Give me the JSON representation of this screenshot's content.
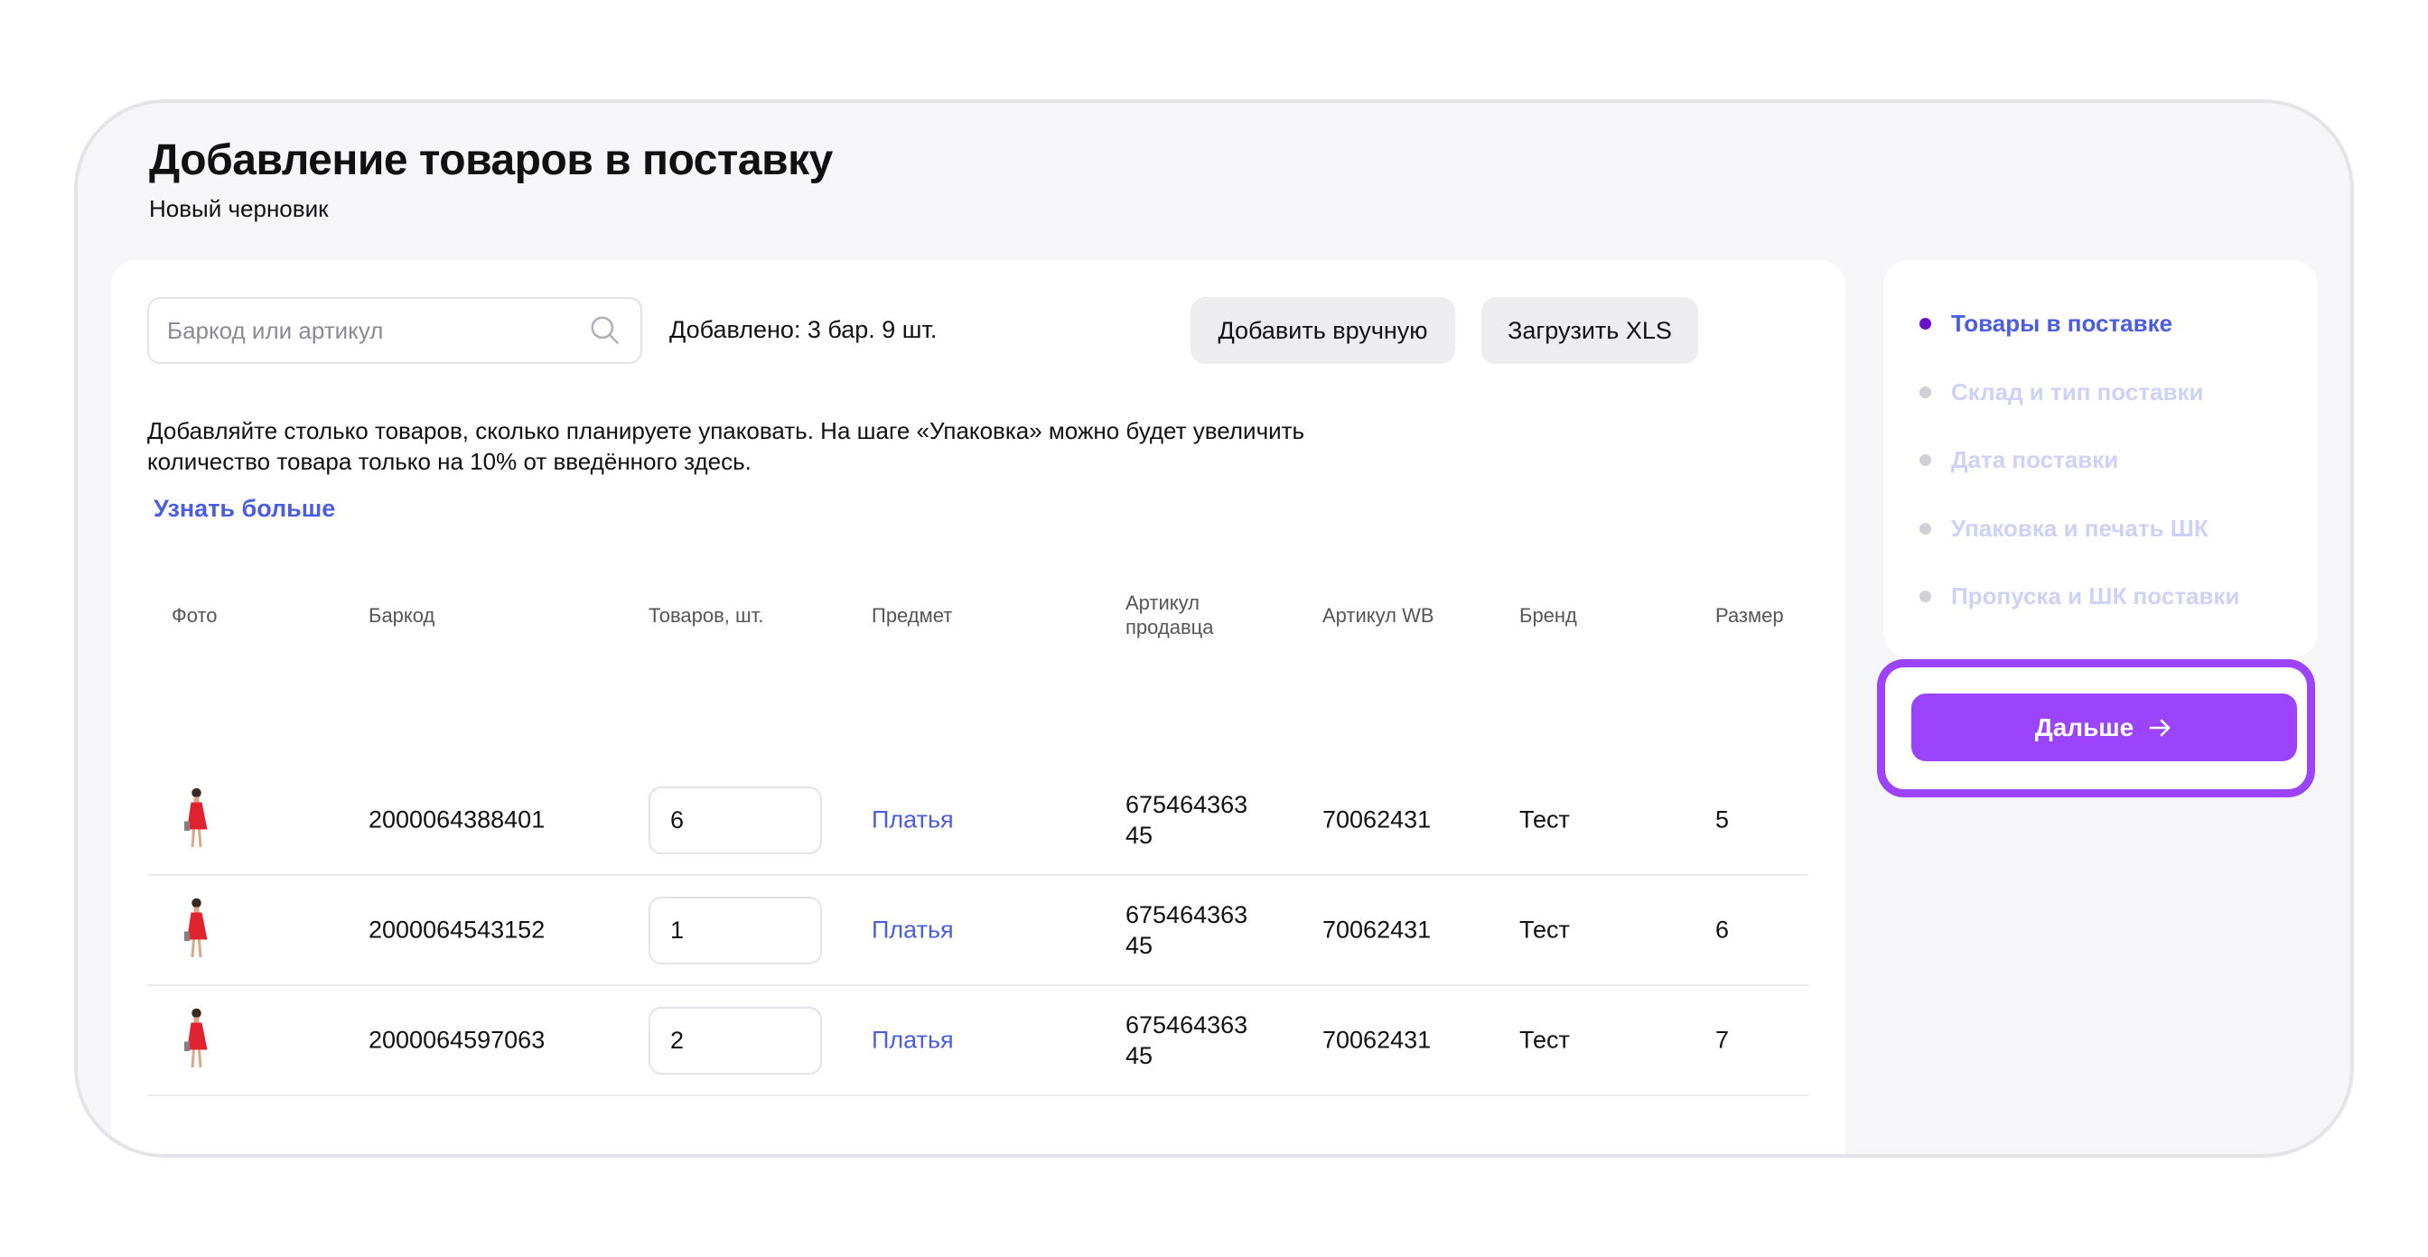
{
  "header": {
    "title": "Добавление товаров в поставку",
    "subtitle": "Новый черновик"
  },
  "toolbar": {
    "search_placeholder": "Баркод или артикул",
    "added_text": "Добавлено: 3 бар. 9 шт.",
    "add_manual_label": "Добавить вручную",
    "upload_xls_label": "Загрузить XLS"
  },
  "info": {
    "text": "Добавляйте столько товаров, сколько планируете упаковать. На шаге «Упаковка» можно будет увеличить количество товара только на 10% от введённого здесь.",
    "learn_more": "Узнать больше"
  },
  "table": {
    "columns": [
      "Фото",
      "Баркод",
      "Товаров, шт.",
      "Предмет",
      "Артикул продавца",
      "Артикул WB",
      "Бренд",
      "Размер"
    ],
    "rows": [
      {
        "barcode": "2000064388401",
        "qty": "6",
        "subject": "Платья",
        "seller_article": "675464363 45",
        "wb_article": "70062431",
        "brand": "Тест",
        "size": "5"
      },
      {
        "barcode": "2000064543152",
        "qty": "1",
        "subject": "Платья",
        "seller_article": "675464363 45",
        "wb_article": "70062431",
        "brand": "Тест",
        "size": "6"
      },
      {
        "barcode": "2000064597063",
        "qty": "2",
        "subject": "Платья",
        "seller_article": "675464363 45",
        "wb_article": "70062431",
        "brand": "Тест",
        "size": "7"
      }
    ]
  },
  "steps": [
    {
      "label": "Товары в поставке",
      "active": true
    },
    {
      "label": "Склад и тип поставки",
      "active": false
    },
    {
      "label": "Дата поставки",
      "active": false
    },
    {
      "label": "Упаковка и печать ШК",
      "active": false
    },
    {
      "label": "Пропуска и ШК поставки",
      "active": false
    }
  ],
  "next_button": {
    "label": "Дальше",
    "icon": "arrow-right-icon"
  },
  "colors": {
    "accent": "#9b44fb",
    "link": "#4b5de0",
    "active_dot": "#6a12c8",
    "inactive_step": "#cdd2f6"
  }
}
